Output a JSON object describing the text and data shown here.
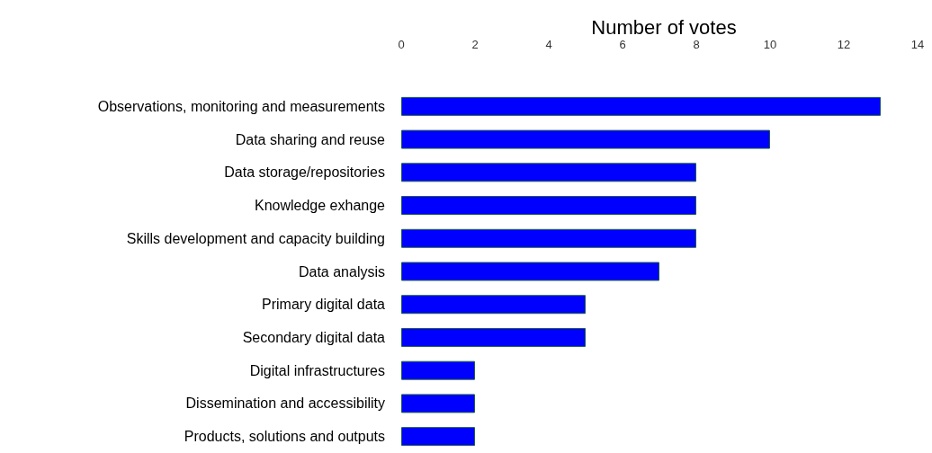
{
  "chart_data": {
    "type": "bar",
    "orientation": "horizontal",
    "title": "Number of votes",
    "categories": [
      "Observations, monitoring and measurements",
      "Data sharing and reuse",
      "Data storage/repositories",
      "Knowledge exhange",
      "Skills development and capacity building",
      "Data analysis",
      "Primary digital data",
      "Secondary digital data",
      "Digital infrastructures",
      "Dissemination and accessibility",
      "Products, solutions and outputs"
    ],
    "values": [
      13,
      10,
      8,
      8,
      8,
      7,
      5,
      5,
      2,
      2,
      2
    ],
    "color": "#0000ff",
    "xlim": [
      0,
      14
    ],
    "xticks": [
      0,
      2,
      4,
      6,
      8,
      10,
      12,
      14
    ],
    "grid": false
  }
}
